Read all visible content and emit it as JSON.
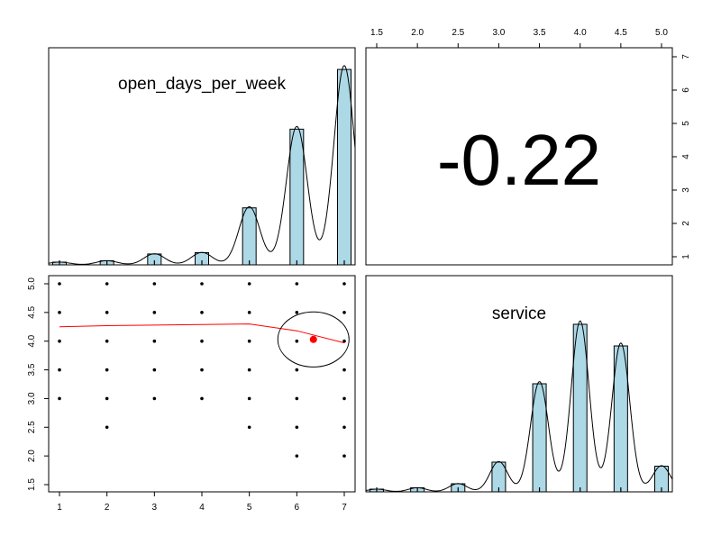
{
  "chart_data": [
    {
      "type": "bar",
      "panel": "diagonal",
      "title": "open_days_per_week",
      "categories": [
        "1",
        "2",
        "3",
        "4",
        "5",
        "6",
        "7"
      ],
      "values": [
        0.02,
        0.03,
        0.08,
        0.09,
        0.42,
        1.0,
        1.44
      ],
      "density": true,
      "ylim": [
        0,
        1.6
      ]
    },
    {
      "type": "table",
      "panel": "upper",
      "label": "-0.22",
      "x_axis_ticks": [
        "1.5",
        "2.0",
        "2.5",
        "3.0",
        "3.5",
        "4.0",
        "4.5",
        "5.0"
      ],
      "y_axis_ticks": [
        "1",
        "2",
        "3",
        "4",
        "5",
        "6",
        "7"
      ]
    },
    {
      "type": "scatter",
      "panel": "lower",
      "x_ticks": [
        "1",
        "2",
        "3",
        "4",
        "5",
        "6",
        "7"
      ],
      "y_ticks": [
        "1.5",
        "2.0",
        "2.5",
        "3.0",
        "3.5",
        "4.0",
        "4.5",
        "5.0"
      ],
      "xlim": [
        0.75,
        7.25
      ],
      "ylim": [
        1.35,
        5.15
      ],
      "points": [
        [
          1,
          5.0
        ],
        [
          1,
          4.5
        ],
        [
          1,
          4.0
        ],
        [
          1,
          3.5
        ],
        [
          1,
          3.0
        ],
        [
          2,
          5.0
        ],
        [
          2,
          4.5
        ],
        [
          2,
          4.0
        ],
        [
          2,
          3.5
        ],
        [
          2,
          3.0
        ],
        [
          2,
          2.5
        ],
        [
          3,
          5.0
        ],
        [
          3,
          4.5
        ],
        [
          3,
          4.0
        ],
        [
          3,
          3.5
        ],
        [
          3,
          3.0
        ],
        [
          4,
          5.0
        ],
        [
          4,
          4.5
        ],
        [
          4,
          4.0
        ],
        [
          4,
          3.5
        ],
        [
          4,
          3.0
        ],
        [
          5,
          5.0
        ],
        [
          5,
          4.5
        ],
        [
          5,
          4.0
        ],
        [
          5,
          3.5
        ],
        [
          5,
          3.0
        ],
        [
          5,
          2.5
        ],
        [
          6,
          5.0
        ],
        [
          6,
          4.5
        ],
        [
          6,
          4.0
        ],
        [
          6,
          3.5
        ],
        [
          6,
          3.0
        ],
        [
          6,
          2.5
        ],
        [
          6,
          2.0
        ],
        [
          7,
          5.0
        ],
        [
          7,
          4.5
        ],
        [
          7,
          4.0
        ],
        [
          7,
          3.5
        ],
        [
          7,
          3.0
        ],
        [
          7,
          2.5
        ],
        [
          7,
          2.0
        ]
      ],
      "smooth_line": [
        [
          1,
          4.25
        ],
        [
          2,
          4.27
        ],
        [
          3,
          4.28
        ],
        [
          4,
          4.29
        ],
        [
          5,
          4.3
        ],
        [
          6,
          4.18
        ],
        [
          7,
          3.97
        ]
      ],
      "mean_point": [
        6.35,
        4.03
      ],
      "ellipse": {
        "cx": 6.35,
        "cy": 4.03,
        "rx": 0.75,
        "ry": 0.48
      },
      "colors": {
        "points": "#000000",
        "smooth": "#ff0000",
        "mean": "#ff0000",
        "ellipse": "#000000"
      }
    },
    {
      "type": "bar",
      "panel": "diagonal",
      "title": "service",
      "categories": [
        "1.5",
        "2.0",
        "2.5",
        "3.0",
        "3.5",
        "4.0",
        "4.5",
        "5.0"
      ],
      "values": [
        0.02,
        0.03,
        0.06,
        0.22,
        0.8,
        1.24,
        1.08,
        0.19
      ],
      "density": true,
      "ylim": [
        0,
        1.6
      ]
    }
  ],
  "colors": {
    "bar_fill": "#add8e6",
    "bar_stroke": "#000000",
    "frame": "#000000"
  }
}
